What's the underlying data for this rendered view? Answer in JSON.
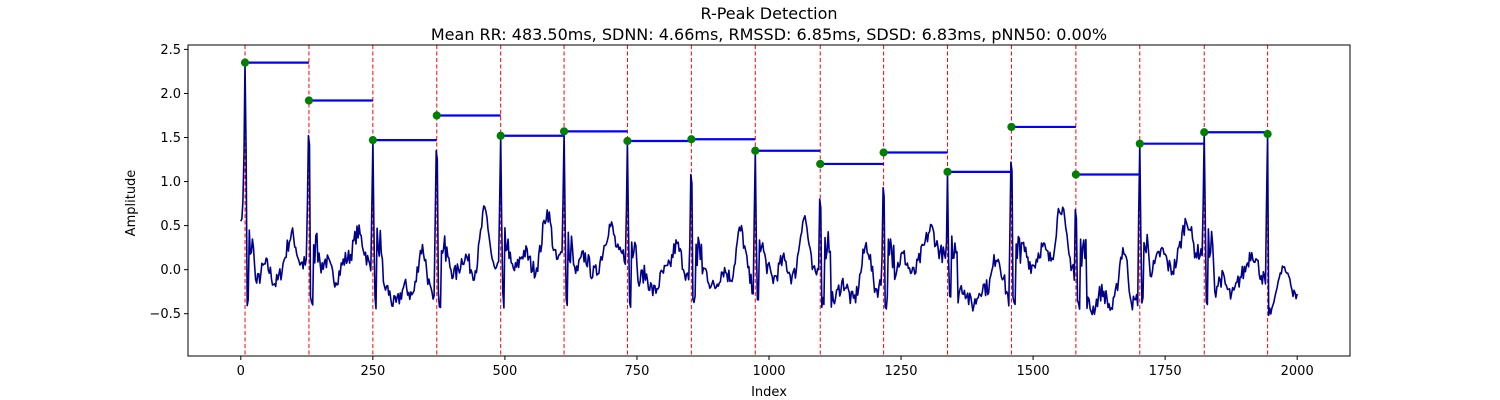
{
  "chart_data": {
    "type": "line",
    "title": "R-Peak Detection",
    "subtitle": "Mean RR: 483.50ms, SDNN: 4.66ms, RMSSD: 6.85ms, SDSD: 6.83ms, pNN50: 0.00%",
    "xlabel": "Index",
    "ylabel": "Amplitude",
    "xlim": [
      -100,
      2100
    ],
    "ylim": [
      -0.98,
      2.55
    ],
    "x_ticks": [
      0,
      250,
      500,
      750,
      1000,
      1250,
      1500,
      1750,
      2000
    ],
    "y_ticks": [
      -0.5,
      0.0,
      0.5,
      1.0,
      1.5,
      2.0,
      2.5
    ],
    "x_tick_labels": [
      "0",
      "250",
      "500",
      "750",
      "1000",
      "1250",
      "1500",
      "1750",
      "2000"
    ],
    "y_tick_labels": [
      "−0.5",
      "0.0",
      "0.5",
      "1.0",
      "1.5",
      "2.0",
      "2.5"
    ],
    "grid": false,
    "colors": {
      "signal": "#00008b",
      "peak_line": "#ff0000",
      "peak_marker": "#008000",
      "rr_segment": "#0000ff"
    },
    "peaks": {
      "x": [
        8,
        129,
        250,
        371,
        492,
        612,
        732,
        853,
        974,
        1097,
        1217,
        1338,
        1459,
        1581,
        1702,
        1824,
        1944
      ],
      "y": [
        2.35,
        1.92,
        1.47,
        1.75,
        1.52,
        1.57,
        1.46,
        1.48,
        1.35,
        1.2,
        1.33,
        1.11,
        1.62,
        1.08,
        1.43,
        1.56,
        1.54
      ]
    },
    "signal": {
      "x_start": 0,
      "x_end": 2000,
      "start_value": 0.55,
      "end_value": -0.1,
      "baseline_y": [
        -0.05,
        0.0,
        -0.3,
        0.05,
        0.1,
        0.05,
        -0.15,
        -0.1,
        0.0,
        -0.25,
        0.05,
        -0.3,
        0.15,
        -0.35,
        0.1,
        -0.2,
        -0.05
      ]
    }
  }
}
